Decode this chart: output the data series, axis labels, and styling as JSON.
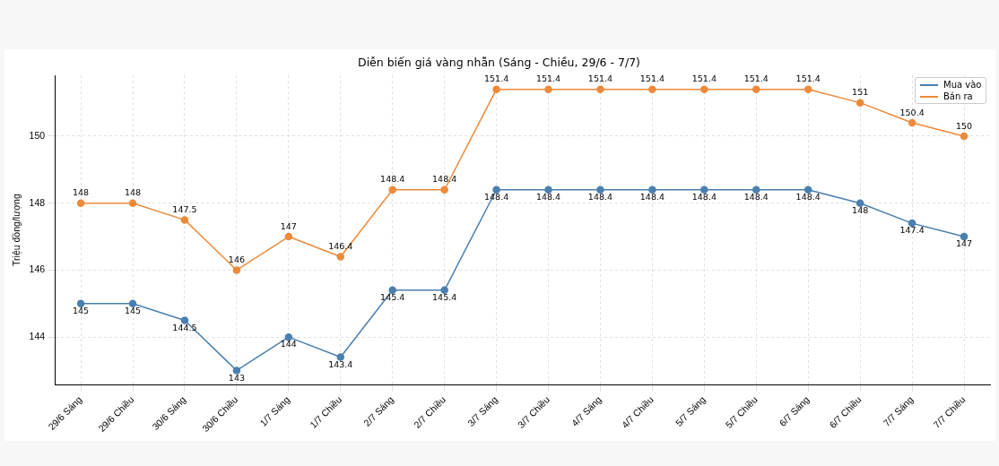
{
  "chart_data": {
    "type": "line",
    "title": "Diễn biến giá vàng nhẫn (Sáng - Chiều, 29/6 - 7/7)",
    "ylabel": "Triệu đồng/lượng",
    "categories": [
      "29/6 Sáng",
      "29/6 Chiều",
      "30/6 Sáng",
      "30/6 Chiều",
      "1/7 Sáng",
      "1/7 Chiều",
      "2/7 Sáng",
      "2/7 Chiều",
      "3/7 Sáng",
      "3/7 Chiều",
      "4/7 Sáng",
      "4/7 Chiều",
      "5/7 Sáng",
      "5/7 Chiều",
      "6/7 Sáng",
      "6/7 Chiều",
      "7/7 Sáng",
      "7/7 Chiều"
    ],
    "series": [
      {
        "name": "Mua vào",
        "color": "#4a7fb0",
        "values": [
          145,
          145,
          144.5,
          143,
          144,
          143.4,
          145.4,
          145.4,
          148.4,
          148.4,
          148.4,
          148.4,
          148.4,
          148.4,
          148.4,
          148,
          147.4,
          147
        ]
      },
      {
        "name": "Bán ra",
        "color": "#ed8a3a",
        "values": [
          148,
          148,
          147.5,
          146,
          147,
          146.4,
          148.4,
          148.4,
          151.4,
          151.4,
          151.4,
          151.4,
          151.4,
          151.4,
          151.4,
          151,
          150.4,
          150
        ]
      }
    ],
    "ylim": [
      142.58,
      151.82
    ],
    "yticks": [
      144,
      146,
      148,
      150
    ],
    "grid": true,
    "legend": "top right",
    "marker": "circle",
    "line_style": "solid",
    "data_labels": true
  }
}
